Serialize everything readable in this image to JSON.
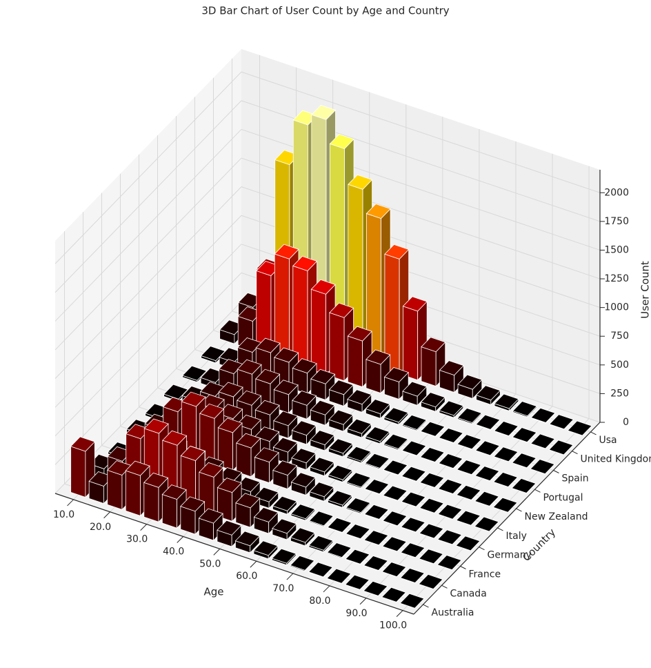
{
  "chart_data": {
    "type": "bar3d",
    "title": "3D Bar Chart of User Count by Age and Country",
    "xlabel": "Age",
    "ylabel": "Country",
    "zlabel": "User Count",
    "colormap": "hot",
    "grid": true,
    "x": [
      10,
      15,
      20,
      25,
      30,
      35,
      40,
      45,
      50,
      55,
      60,
      65,
      70,
      75,
      80,
      85,
      90,
      95,
      100
    ],
    "xlim": [
      5,
      103
    ],
    "xticks": [
      {
        "value": 10,
        "label": "10.0"
      },
      {
        "value": 20,
        "label": "20.0"
      },
      {
        "value": 30,
        "label": "30.0"
      },
      {
        "value": 40,
        "label": "40.0"
      },
      {
        "value": 50,
        "label": "50.0"
      },
      {
        "value": 60,
        "label": "60.0"
      },
      {
        "value": 70,
        "label": "70.0"
      },
      {
        "value": 80,
        "label": "80.0"
      },
      {
        "value": 90,
        "label": "90.0"
      },
      {
        "value": 100,
        "label": "100.0"
      }
    ],
    "zlim": [
      0,
      2200
    ],
    "zticks": [
      0,
      250,
      500,
      750,
      1000,
      1250,
      1500,
      1750,
      2000
    ],
    "series": [
      {
        "name": "Australia",
        "values": [
          400,
          150,
          300,
          350,
          300,
          250,
          200,
          150,
          100,
          60,
          30,
          15,
          8,
          4,
          2,
          1,
          0,
          0,
          0
        ]
      },
      {
        "name": "Canada",
        "values": [
          80,
          200,
          450,
          550,
          500,
          420,
          330,
          250,
          170,
          100,
          55,
          30,
          15,
          7,
          3,
          1,
          0,
          0,
          0
        ]
      },
      {
        "name": "France",
        "values": [
          20,
          60,
          180,
          230,
          200,
          160,
          120,
          90,
          55,
          30,
          15,
          8,
          4,
          2,
          1,
          0,
          0,
          0,
          0
        ]
      },
      {
        "name": "Germany",
        "values": [
          50,
          150,
          350,
          450,
          400,
          330,
          250,
          180,
          120,
          70,
          40,
          20,
          10,
          5,
          2,
          1,
          0,
          0,
          0
        ]
      },
      {
        "name": "Italy",
        "values": [
          20,
          70,
          200,
          260,
          230,
          190,
          140,
          100,
          60,
          35,
          20,
          10,
          5,
          2,
          1,
          0,
          0,
          0,
          0
        ]
      },
      {
        "name": "New Zealand",
        "values": [
          20,
          60,
          150,
          200,
          180,
          150,
          110,
          80,
          50,
          30,
          15,
          8,
          4,
          2,
          1,
          0,
          0,
          0,
          0
        ]
      },
      {
        "name": "Portugal",
        "values": [
          15,
          50,
          180,
          230,
          200,
          160,
          120,
          90,
          60,
          35,
          20,
          10,
          5,
          2,
          1,
          0,
          0,
          0,
          0
        ]
      },
      {
        "name": "Spain",
        "values": [
          20,
          60,
          200,
          250,
          220,
          180,
          140,
          100,
          70,
          40,
          20,
          10,
          5,
          3,
          1,
          0,
          0,
          0,
          0
        ]
      },
      {
        "name": "United Kingdom",
        "values": [
          80,
          250,
          700,
          900,
          850,
          700,
          550,
          400,
          250,
          150,
          80,
          40,
          20,
          10,
          5,
          3,
          2,
          0,
          0
        ]
      },
      {
        "name": "Usa",
        "values": [
          150,
          500,
          1500,
          1900,
          2000,
          1800,
          1500,
          1300,
          1000,
          600,
          300,
          150,
          80,
          40,
          20,
          10,
          5,
          2,
          0
        ]
      }
    ]
  }
}
